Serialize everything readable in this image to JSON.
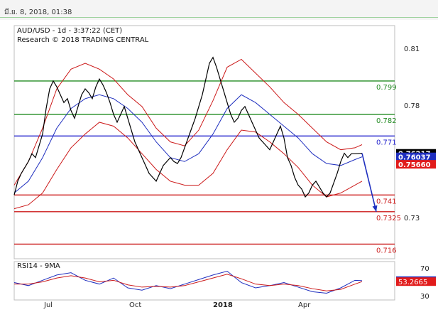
{
  "header": {
    "timestamp": "มี.ย. 8, 2018, 01:38"
  },
  "chart_data": {
    "type": "line",
    "title": "AUD/USD - 1d - 3:37:22 (CET)",
    "subtitle": "Research © 2018 TRADING CENTRAL",
    "x_ticks": [
      "Jul",
      "Oct",
      "2018",
      "Apr"
    ],
    "y_ticks": [
      "0.81",
      "0.78",
      "0.73"
    ],
    "ylim": [
      0.71,
      0.825
    ],
    "price_line": {
      "color": "#000000",
      "x": [
        0,
        5,
        10,
        15,
        20,
        25,
        30,
        35,
        40,
        45,
        50,
        55,
        60,
        65,
        70,
        75,
        80,
        85,
        90,
        95,
        100,
        105,
        110,
        115,
        120,
        125,
        130,
        135,
        140,
        145,
        150,
        155,
        160,
        165,
        170,
        175,
        180,
        185,
        190,
        195,
        200,
        205,
        210,
        215,
        220,
        225,
        230,
        235,
        240,
        245,
        250,
        255,
        260,
        265,
        270,
        275,
        280,
        285,
        290,
        295,
        300,
        305,
        310,
        315,
        320,
        325,
        330,
        335,
        340,
        345,
        350,
        355,
        360,
        365,
        370,
        375,
        380,
        385,
        390,
        395,
        400,
        405,
        410,
        415,
        420,
        425,
        430,
        435,
        440,
        445,
        450,
        455,
        460,
        465,
        470,
        475,
        480,
        485,
        490
      ],
      "values": [
        0.741,
        0.748,
        0.752,
        0.755,
        0.758,
        0.762,
        0.76,
        0.766,
        0.772,
        0.785,
        0.795,
        0.799,
        0.796,
        0.792,
        0.788,
        0.79,
        0.784,
        0.78,
        0.786,
        0.792,
        0.795,
        0.793,
        0.79,
        0.796,
        0.8,
        0.797,
        0.793,
        0.788,
        0.782,
        0.778,
        0.782,
        0.786,
        0.78,
        0.774,
        0.768,
        0.764,
        0.76,
        0.756,
        0.752,
        0.75,
        0.748,
        0.752,
        0.756,
        0.758,
        0.76,
        0.758,
        0.757,
        0.76,
        0.765,
        0.77,
        0.775,
        0.78,
        0.786,
        0.792,
        0.8,
        0.808,
        0.811,
        0.806,
        0.8,
        0.794,
        0.788,
        0.782,
        0.778,
        0.78,
        0.784,
        0.786,
        0.782,
        0.778,
        0.774,
        0.77,
        0.768,
        0.766,
        0.764,
        0.768,
        0.772,
        0.776,
        0.77,
        0.76,
        0.756,
        0.75,
        0.746,
        0.744,
        0.74,
        0.742,
        0.746,
        0.748,
        0.745,
        0.742,
        0.74,
        0.742,
        0.747,
        0.752,
        0.758,
        0.7622,
        0.76,
        0.762,
        0.762,
        0.7621,
        0.7622
      ]
    },
    "series": [
      {
        "type": "line",
        "color": "#1f2fbf",
        "x": [
          0,
          20,
          40,
          60,
          80,
          100,
          120,
          140,
          160,
          180,
          200,
          220,
          240,
          260,
          280,
          300,
          320,
          340,
          360,
          380,
          400,
          420,
          440,
          460,
          480,
          490
        ],
        "values": [
          0.742,
          0.748,
          0.76,
          0.775,
          0.785,
          0.79,
          0.792,
          0.79,
          0.785,
          0.778,
          0.768,
          0.76,
          0.758,
          0.762,
          0.772,
          0.785,
          0.792,
          0.788,
          0.782,
          0.776,
          0.77,
          0.762,
          0.757,
          0.756,
          0.759,
          0.7604
        ]
      },
      {
        "type": "line",
        "color": "#cc1a1a",
        "x": [
          0,
          20,
          40,
          60,
          80,
          100,
          120,
          140,
          160,
          180,
          200,
          220,
          240,
          260,
          280,
          300,
          320,
          340,
          360,
          380,
          400,
          420,
          440,
          460,
          480,
          490
        ],
        "values": [
          0.746,
          0.758,
          0.775,
          0.795,
          0.805,
          0.808,
          0.805,
          0.8,
          0.792,
          0.786,
          0.775,
          0.768,
          0.766,
          0.774,
          0.789,
          0.806,
          0.81,
          0.803,
          0.796,
          0.788,
          0.782,
          0.775,
          0.768,
          0.764,
          0.765,
          0.7666
        ]
      },
      {
        "type": "line",
        "color": "#cc1a1a",
        "x": [
          0,
          20,
          40,
          60,
          80,
          100,
          120,
          140,
          160,
          180,
          200,
          220,
          240,
          260,
          280,
          300,
          320,
          340,
          360,
          380,
          400,
          420,
          440,
          460,
          480,
          490
        ],
        "values": [
          0.734,
          0.736,
          0.742,
          0.754,
          0.765,
          0.772,
          0.778,
          0.776,
          0.77,
          0.762,
          0.754,
          0.748,
          0.746,
          0.746,
          0.752,
          0.764,
          0.774,
          0.773,
          0.768,
          0.762,
          0.755,
          0.746,
          0.74,
          0.742,
          0.746,
          0.748
        ]
      }
    ],
    "levels": [
      {
        "label": "0.799",
        "value": 0.799,
        "color": "#228b22"
      },
      {
        "label": "0.782",
        "value": 0.782,
        "color": "#228b22"
      },
      {
        "label": "0.771",
        "value": 0.771,
        "color": "#2020cc"
      },
      {
        "label": "0.741",
        "value": 0.741,
        "color": "#cc1a1a"
      },
      {
        "label": "0.7325",
        "value": 0.7325,
        "color": "#cc1a1a"
      },
      {
        "label": "0.716",
        "value": 0.716,
        "color": "#cc1a1a"
      }
    ],
    "price_labels": [
      {
        "label": "0.76217",
        "value": 0.76217,
        "bg": "#000000",
        "fg": "#ffffff"
      },
      {
        "label": "0.76037",
        "value": 0.76037,
        "bg": "#1f2fbf",
        "fg": "#ffffff"
      },
      {
        "label": "0.75660",
        "value": 0.7566,
        "bg": "#e11b1b",
        "fg": "#ffffff"
      }
    ],
    "forecast_arrow": {
      "from": {
        "x": 490,
        "value": 0.7622
      },
      "to": {
        "x": 510,
        "value": 0.7325
      },
      "color": "#1f2fbf"
    },
    "rsi": {
      "title": "RSI14 - 9MA",
      "ylim": [
        30,
        75
      ],
      "y_ticks": [
        "70",
        "30"
      ],
      "x": [
        0,
        20,
        40,
        60,
        80,
        100,
        120,
        140,
        160,
        180,
        200,
        220,
        240,
        260,
        280,
        300,
        320,
        340,
        360,
        380,
        400,
        420,
        440,
        460,
        480,
        490
      ],
      "rsi_values": [
        52,
        48,
        55,
        62,
        65,
        55,
        50,
        58,
        45,
        42,
        48,
        44,
        50,
        56,
        62,
        67,
        52,
        45,
        48,
        52,
        46,
        40,
        38,
        45,
        55,
        54.5291
      ],
      "ma_values": [
        50,
        50,
        53,
        58,
        61,
        58,
        53,
        55,
        49,
        46,
        47,
        46,
        48,
        53,
        58,
        63,
        57,
        50,
        48,
        50,
        48,
        44,
        41,
        43,
        50,
        53.2665
      ],
      "labels": [
        {
          "label": "54.5291",
          "value": 54.5291,
          "bg": "#1f2fbf",
          "fg": "#ffffff"
        },
        {
          "label": "53.2665",
          "value": 53.2665,
          "bg": "#e11b1b",
          "fg": "#ffffff"
        }
      ]
    }
  }
}
